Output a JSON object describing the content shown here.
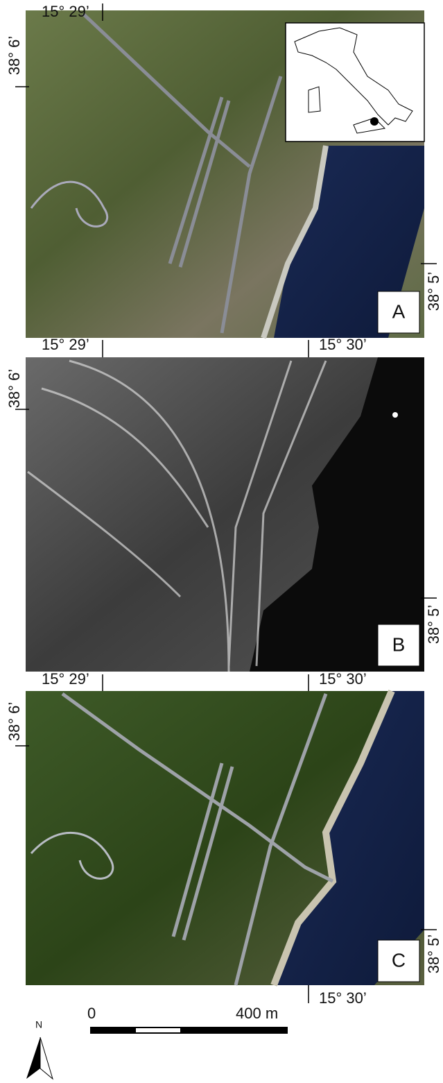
{
  "panels": [
    {
      "label": "A",
      "top_ticks": [
        "15° 29’"
      ],
      "left_tick": "38° 6’",
      "right_tick": "38° 5’"
    },
    {
      "label": "B",
      "top_ticks": [
        "15° 29’",
        "15° 30’"
      ],
      "left_tick": "38° 6’",
      "right_tick": "38° 5’"
    },
    {
      "label": "C",
      "top_ticks": [
        "15° 29’",
        "15° 30’"
      ],
      "left_tick": "38° 6’",
      "right_tick": "38° 5’",
      "bottom_tick": "15° 30’"
    }
  ],
  "scale_bar": {
    "start": "0",
    "end": "400 m"
  },
  "north_arrow": "N"
}
